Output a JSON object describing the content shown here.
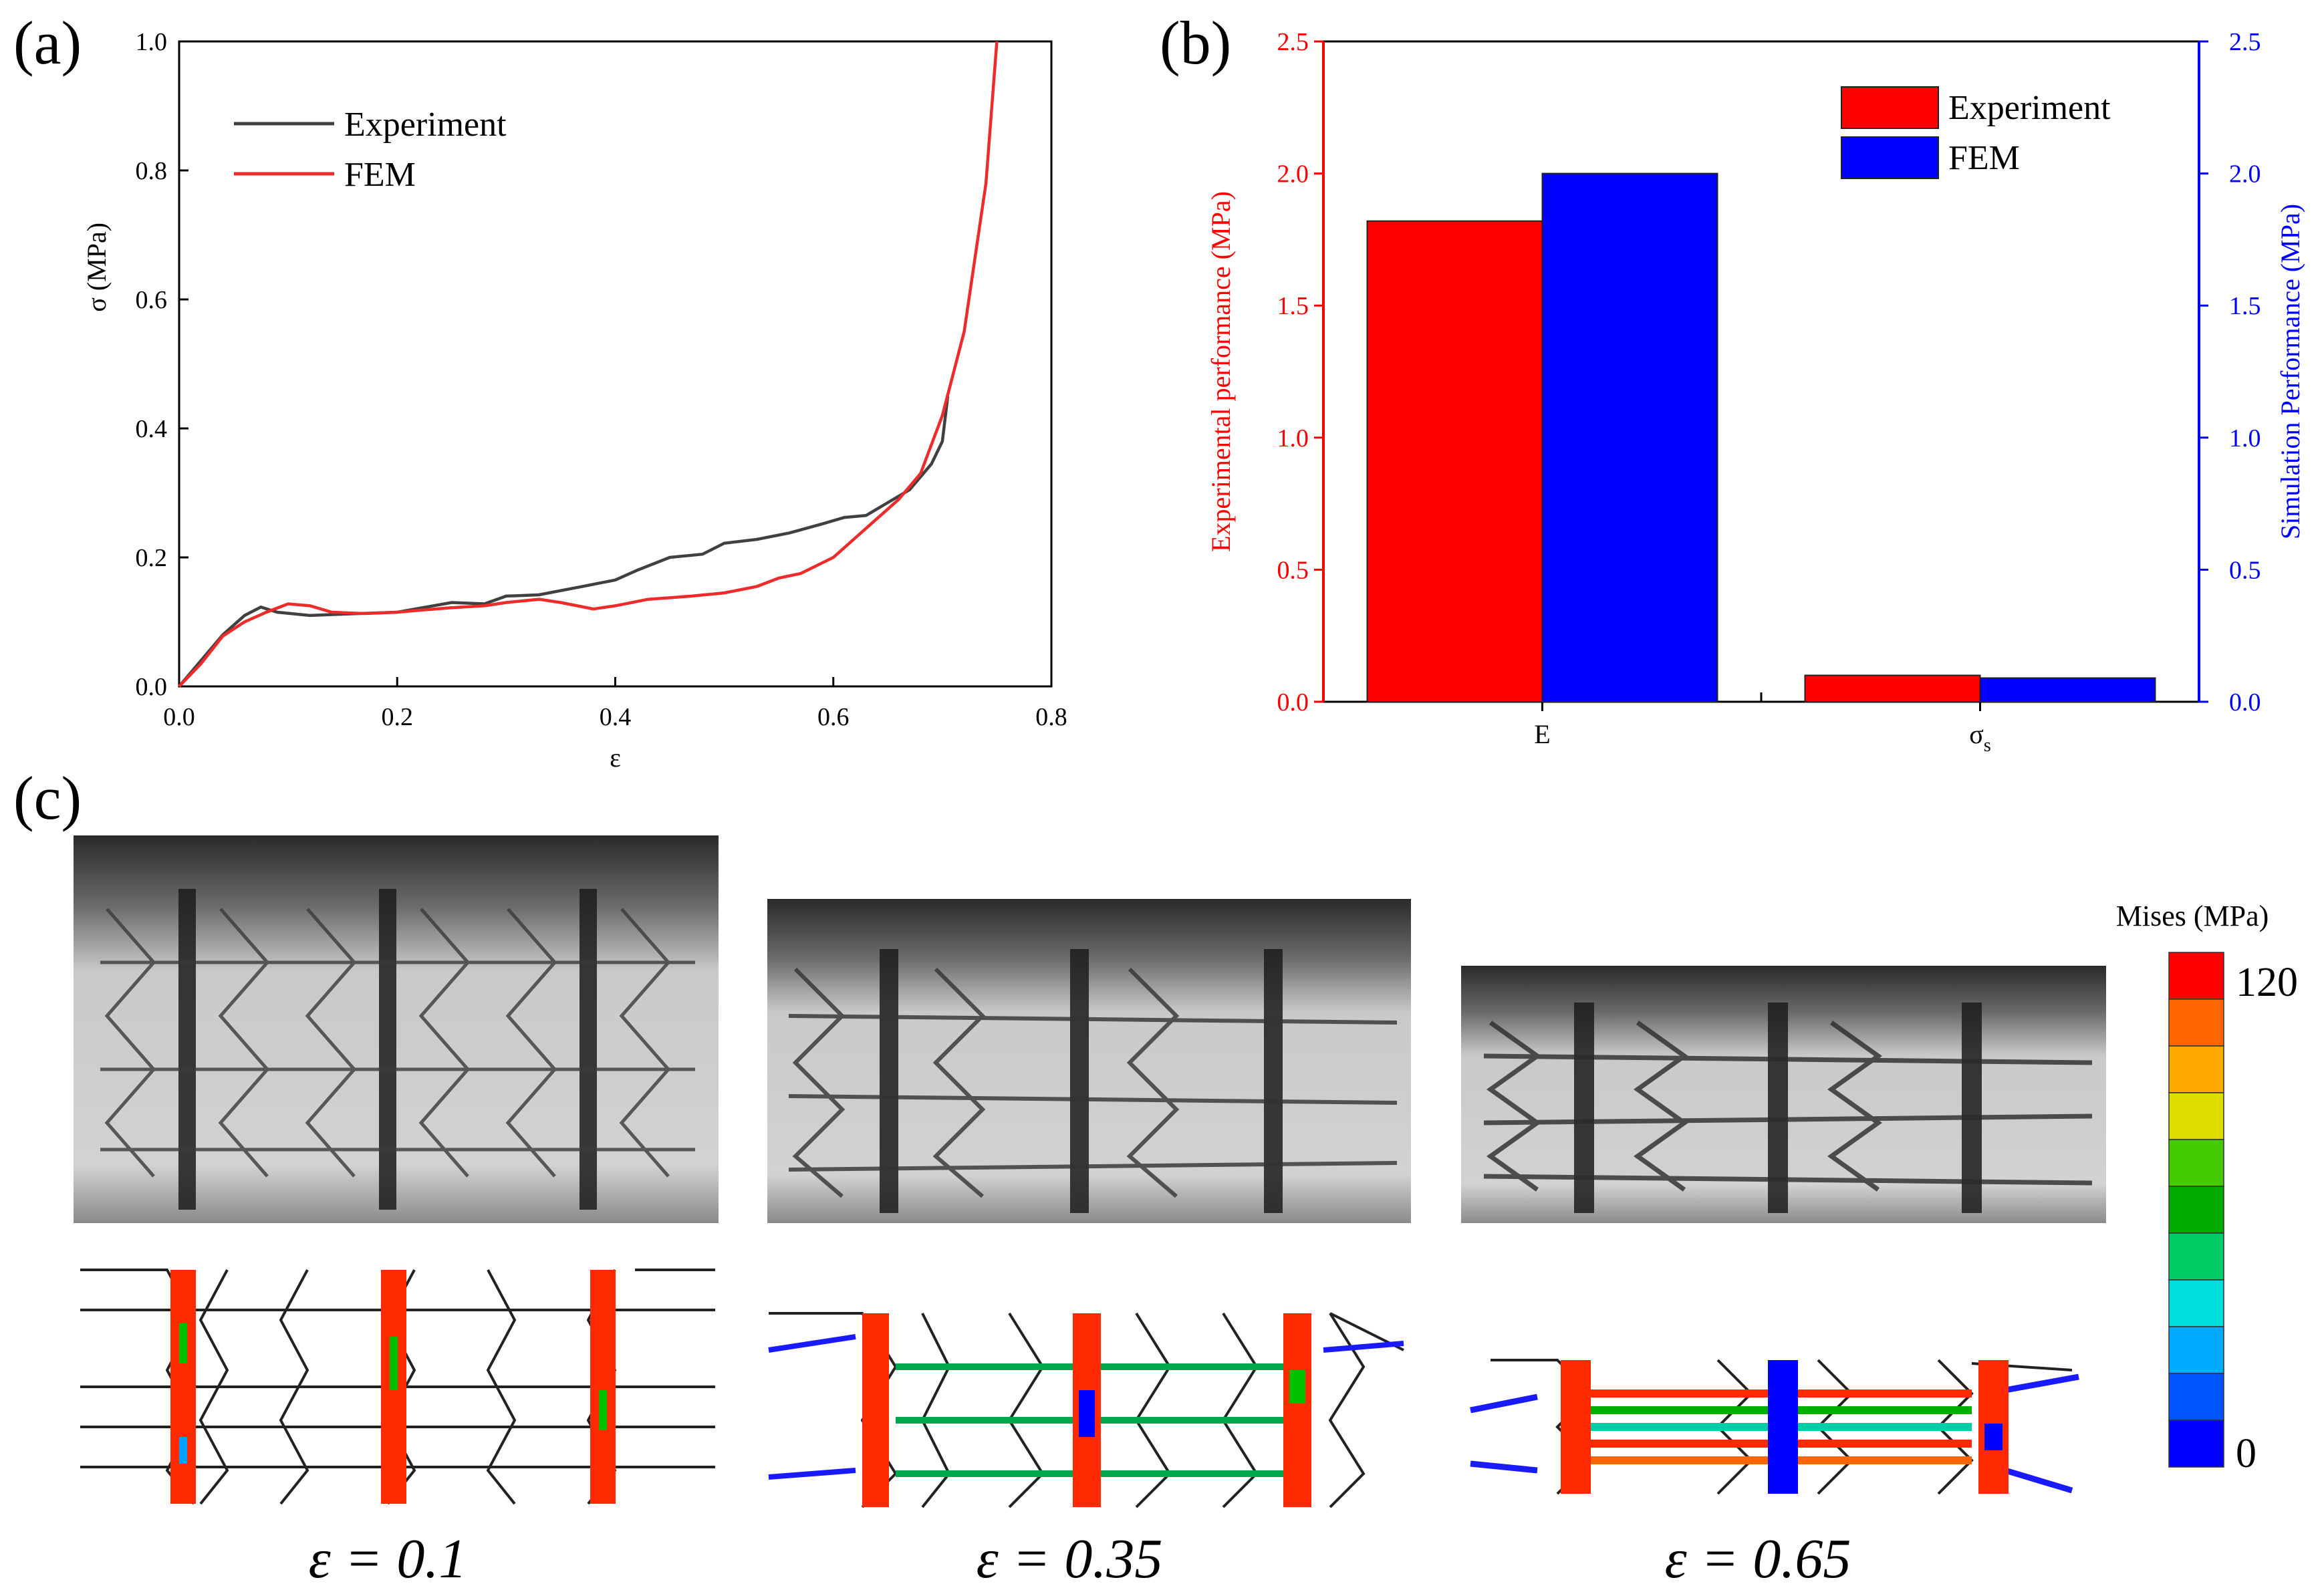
{
  "panel_labels": {
    "a": "(a)",
    "b": "(b)",
    "c": "(c)"
  },
  "colors": {
    "experiment_line": "#404040",
    "fem_line": "#ee2b2b",
    "experiment_bar": "#ff0000",
    "fem_bar": "#0000ff",
    "left_axis": "#ff0000",
    "right_axis": "#0000ff"
  },
  "chart_data": [
    {
      "type": "line",
      "panel": "(a)",
      "xlabel": "ε",
      "ylabel": "σ  (MPa)",
      "xlim": [
        0,
        0.8
      ],
      "ylim": [
        0,
        1.0
      ],
      "xticks": [
        "0.0",
        "0.2",
        "0.4",
        "0.6",
        "0.8"
      ],
      "yticks": [
        "0.0",
        "0.2",
        "0.4",
        "0.6",
        "0.8",
        "1.0"
      ],
      "legend_position": "top-left",
      "grid": false,
      "series": [
        {
          "name": "Experiment",
          "color": "#404040",
          "points": [
            [
              0,
              0
            ],
            [
              0.02,
              0.04
            ],
            [
              0.04,
              0.08
            ],
            [
              0.06,
              0.11
            ],
            [
              0.075,
              0.123
            ],
            [
              0.09,
              0.115
            ],
            [
              0.12,
              0.11
            ],
            [
              0.15,
              0.112
            ],
            [
              0.2,
              0.115
            ],
            [
              0.25,
              0.13
            ],
            [
              0.28,
              0.128
            ],
            [
              0.3,
              0.14
            ],
            [
              0.33,
              0.142
            ],
            [
              0.37,
              0.155
            ],
            [
              0.4,
              0.165
            ],
            [
              0.42,
              0.18
            ],
            [
              0.45,
              0.2
            ],
            [
              0.48,
              0.205
            ],
            [
              0.5,
              0.222
            ],
            [
              0.53,
              0.228
            ],
            [
              0.56,
              0.238
            ],
            [
              0.59,
              0.252
            ],
            [
              0.61,
              0.262
            ],
            [
              0.63,
              0.265
            ],
            [
              0.65,
              0.285
            ],
            [
              0.67,
              0.305
            ],
            [
              0.69,
              0.345
            ],
            [
              0.7,
              0.38
            ],
            [
              0.705,
              0.45
            ]
          ]
        },
        {
          "name": "FEM",
          "color": "#ee2b2b",
          "points": [
            [
              0,
              0
            ],
            [
              0.02,
              0.035
            ],
            [
              0.04,
              0.078
            ],
            [
              0.06,
              0.1
            ],
            [
              0.08,
              0.115
            ],
            [
              0.1,
              0.128
            ],
            [
              0.12,
              0.125
            ],
            [
              0.14,
              0.115
            ],
            [
              0.17,
              0.113
            ],
            [
              0.2,
              0.115
            ],
            [
              0.22,
              0.118
            ],
            [
              0.25,
              0.122
            ],
            [
              0.28,
              0.125
            ],
            [
              0.3,
              0.13
            ],
            [
              0.33,
              0.135
            ],
            [
              0.35,
              0.13
            ],
            [
              0.38,
              0.12
            ],
            [
              0.4,
              0.125
            ],
            [
              0.43,
              0.135
            ],
            [
              0.47,
              0.14
            ],
            [
              0.5,
              0.145
            ],
            [
              0.53,
              0.155
            ],
            [
              0.55,
              0.168
            ],
            [
              0.57,
              0.175
            ],
            [
              0.6,
              0.2
            ],
            [
              0.62,
              0.23
            ],
            [
              0.64,
              0.26
            ],
            [
              0.66,
              0.29
            ],
            [
              0.68,
              0.33
            ],
            [
              0.7,
              0.42
            ],
            [
              0.72,
              0.55
            ],
            [
              0.74,
              0.78
            ],
            [
              0.75,
              1.0
            ]
          ]
        }
      ]
    },
    {
      "type": "bar",
      "panel": "(b)",
      "categories": [
        "E",
        "σs"
      ],
      "ylabel": "Experimental performance (MPa)",
      "y2label": "Simulation Performance (MPa)",
      "ylim": [
        0,
        2.5
      ],
      "y2lim": [
        0,
        2.5
      ],
      "yticks": [
        "0.0",
        "0.5",
        "1.0",
        "1.5",
        "2.0",
        "2.5"
      ],
      "y2ticks": [
        "0.0",
        "0.5",
        "1.0",
        "1.5",
        "2.0",
        "2.5"
      ],
      "legend_position": "top-right",
      "grid": false,
      "series": [
        {
          "name": "Experiment",
          "color": "#ff0000",
          "values": [
            1.82,
            0.1
          ]
        },
        {
          "name": "FEM",
          "color": "#0000ff",
          "values": [
            2.0,
            0.09
          ]
        }
      ]
    }
  ],
  "panel_c": {
    "strain_labels": [
      "ε = 0.1",
      "ε = 0.35",
      "ε = 0.65"
    ],
    "colorbar": {
      "title": "Mises (MPa)",
      "max_label": "120",
      "min_label": "0",
      "colors": [
        "#ff0000",
        "#ff6600",
        "#ffaa00",
        "#dddd00",
        "#44cc00",
        "#00aa00",
        "#00cc66",
        "#00dddd",
        "#00aaff",
        "#0055ff",
        "#0000ff"
      ]
    }
  }
}
